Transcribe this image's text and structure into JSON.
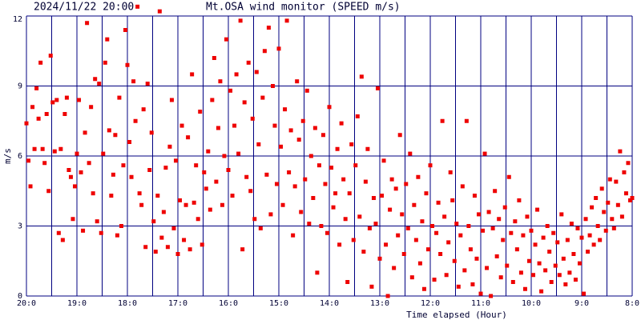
{
  "chart_data": {
    "type": "scatter",
    "title": "2024/11/22 20:00",
    "subtitle": "Mt.OSA wind monitor (SPEED m/s)",
    "x_label": "Time elapsed (Hour)",
    "y_label": "m/s",
    "color": "#ee0000",
    "grid_color": "#000080",
    "grid": true,
    "xlim": [
      0,
      12
    ],
    "ylim": [
      0,
      12
    ],
    "xticks": [
      {
        "value": 0,
        "label": "20:0"
      },
      {
        "value": 1,
        "label": "19:0"
      },
      {
        "value": 2,
        "label": "18:0"
      },
      {
        "value": 3,
        "label": "17:0"
      },
      {
        "value": 4,
        "label": "16:0"
      },
      {
        "value": 5,
        "label": "15:0"
      },
      {
        "value": 6,
        "label": "14:0"
      },
      {
        "value": 7,
        "label": "13:0"
      },
      {
        "value": 8,
        "label": "12:0"
      },
      {
        "value": 9,
        "label": "11:0"
      },
      {
        "value": 10,
        "label": "10:0"
      },
      {
        "value": 11,
        "label": "9:0"
      },
      {
        "value": 12,
        "label": "8:0"
      }
    ],
    "xminor": [
      0.5,
      1.5,
      2.5,
      3.5,
      4.5,
      5.5,
      6.5,
      7.5,
      8.5,
      9.5,
      10.5,
      11.5
    ],
    "yticks": [
      0,
      3,
      6,
      9,
      12
    ],
    "x": [
      0.0,
      0.04,
      0.08,
      0.12,
      0.16,
      0.2,
      0.24,
      0.28,
      0.32,
      0.36,
      0.4,
      0.44,
      0.48,
      0.52,
      0.56,
      0.6,
      0.64,
      0.68,
      0.72,
      0.76,
      0.8,
      0.84,
      0.88,
      0.92,
      0.96,
      1.0,
      1.04,
      1.08,
      1.12,
      1.16,
      1.2,
      1.24,
      1.28,
      1.32,
      1.36,
      1.4,
      1.44,
      1.48,
      1.52,
      1.56,
      1.6,
      1.64,
      1.68,
      1.72,
      1.76,
      1.8,
      1.84,
      1.88,
      1.92,
      1.96,
      2.0,
      2.04,
      2.08,
      2.12,
      2.16,
      2.2,
      2.24,
      2.28,
      2.32,
      2.36,
      2.4,
      2.44,
      2.48,
      2.52,
      2.56,
      2.6,
      2.64,
      2.68,
      2.72,
      2.76,
      2.8,
      2.84,
      2.88,
      2.92,
      2.96,
      3.0,
      3.04,
      3.08,
      3.12,
      3.16,
      3.2,
      3.24,
      3.28,
      3.32,
      3.36,
      3.4,
      3.44,
      3.48,
      3.52,
      3.56,
      3.6,
      3.64,
      3.68,
      3.72,
      3.76,
      3.8,
      3.84,
      3.88,
      3.92,
      3.96,
      4.0,
      4.04,
      4.08,
      4.12,
      4.16,
      4.2,
      4.24,
      4.28,
      4.32,
      4.36,
      4.4,
      4.44,
      4.48,
      4.52,
      4.56,
      4.6,
      4.64,
      4.68,
      4.72,
      4.76,
      4.8,
      4.84,
      4.88,
      4.92,
      4.96,
      5.0,
      5.04,
      5.08,
      5.12,
      5.16,
      5.2,
      5.24,
      5.28,
      5.32,
      5.36,
      5.4,
      5.44,
      5.48,
      5.52,
      5.56,
      5.6,
      5.64,
      5.68,
      5.72,
      5.76,
      5.8,
      5.84,
      5.88,
      5.92,
      5.96,
      6.0,
      6.04,
      6.08,
      6.12,
      6.16,
      6.2,
      6.24,
      6.28,
      6.32,
      6.36,
      6.4,
      6.44,
      6.48,
      6.52,
      6.56,
      6.6,
      6.64,
      6.68,
      6.72,
      6.76,
      6.8,
      6.84,
      6.88,
      6.92,
      6.96,
      7.0,
      7.04,
      7.08,
      7.12,
      7.16,
      7.2,
      7.24,
      7.28,
      7.32,
      7.36,
      7.4,
      7.44,
      7.48,
      7.52,
      7.56,
      7.6,
      7.64,
      7.68,
      7.72,
      7.76,
      7.8,
      7.84,
      7.88,
      7.92,
      7.96,
      8.0,
      8.04,
      8.08,
      8.12,
      8.16,
      8.2,
      8.24,
      8.28,
      8.32,
      8.36,
      8.4,
      8.44,
      8.48,
      8.52,
      8.56,
      8.6,
      8.64,
      8.68,
      8.72,
      8.76,
      8.8,
      8.84,
      8.88,
      8.92,
      8.96,
      9.0,
      9.04,
      9.08,
      9.12,
      9.16,
      9.2,
      9.24,
      9.28,
      9.32,
      9.36,
      9.4,
      9.44,
      9.48,
      9.52,
      9.56,
      9.6,
      9.64,
      9.68,
      9.72,
      9.76,
      9.8,
      9.84,
      9.88,
      9.92,
      9.96,
      10.0,
      10.04,
      10.08,
      10.12,
      10.16,
      10.2,
      10.24,
      10.28,
      10.32,
      10.36,
      10.4,
      10.44,
      10.48,
      10.52,
      10.56,
      10.6,
      10.64,
      10.68,
      10.72,
      10.76,
      10.8,
      10.84,
      10.88,
      10.92,
      10.96,
      11.0,
      11.04,
      11.08,
      11.12,
      11.16,
      11.2,
      11.24,
      11.28,
      11.32,
      11.36,
      11.4,
      11.44,
      11.48,
      11.52,
      11.56,
      11.6,
      11.64,
      11.68,
      11.72,
      11.76,
      11.8,
      11.84,
      11.88,
      11.92,
      11.96,
      12.0
    ],
    "values": [
      7.4,
      5.8,
      4.7,
      8.1,
      6.3,
      8.9,
      7.6,
      10.0,
      6.3,
      5.7,
      7.8,
      4.5,
      10.3,
      8.3,
      6.2,
      8.4,
      2.7,
      6.3,
      2.4,
      7.8,
      8.5,
      5.4,
      5.1,
      3.3,
      4.7,
      6.1,
      8.4,
      5.3,
      2.8,
      7.0,
      11.7,
      5.7,
      8.1,
      4.4,
      9.3,
      3.2,
      9.1,
      2.7,
      6.1,
      10.0,
      11.0,
      7.1,
      4.3,
      5.2,
      6.9,
      2.6,
      8.5,
      3.0,
      5.6,
      11.4,
      9.9,
      6.6,
      5.1,
      9.2,
      7.5,
      12.4,
      4.4,
      3.9,
      8.0,
      2.1,
      9.1,
      5.4,
      7.0,
      3.2,
      1.9,
      4.3,
      12.2,
      2.5,
      3.6,
      5.5,
      2.1,
      6.4,
      8.4,
      2.9,
      5.8,
      1.8,
      4.1,
      7.3,
      2.4,
      3.9,
      6.8,
      2.0,
      9.5,
      4.0,
      5.6,
      3.3,
      7.9,
      2.2,
      5.3,
      4.6,
      6.2,
      3.7,
      8.4,
      10.2,
      4.9,
      7.2,
      9.2,
      3.9,
      6.0,
      11.0,
      5.4,
      8.8,
      4.3,
      7.3,
      9.5,
      6.1,
      11.8,
      2.0,
      8.3,
      5.1,
      10.0,
      4.5,
      7.6,
      3.3,
      9.6,
      6.5,
      2.9,
      8.5,
      10.5,
      5.2,
      11.5,
      3.5,
      9.0,
      7.3,
      4.8,
      10.6,
      6.4,
      3.9,
      8.0,
      11.8,
      5.3,
      7.1,
      2.6,
      4.7,
      9.2,
      6.7,
      3.6,
      7.5,
      5.0,
      8.8,
      3.1,
      6.0,
      4.2,
      7.2,
      1.0,
      5.6,
      3.0,
      6.9,
      4.8,
      2.7,
      8.1,
      5.5,
      3.8,
      4.4,
      6.3,
      2.2,
      7.4,
      5.0,
      3.3,
      0.6,
      4.4,
      6.5,
      2.4,
      5.6,
      7.7,
      3.4,
      9.4,
      1.9,
      4.9,
      6.3,
      2.9,
      0.4,
      4.2,
      3.1,
      8.9,
      1.6,
      4.3,
      5.8,
      2.2,
      0.0,
      3.7,
      5.0,
      1.2,
      4.6,
      2.6,
      6.9,
      3.5,
      1.8,
      4.8,
      2.9,
      6.1,
      0.8,
      3.9,
      2.4,
      5.1,
      1.4,
      3.2,
      0.3,
      4.4,
      2.0,
      5.6,
      3.0,
      0.7,
      2.7,
      4.0,
      1.8,
      7.5,
      3.4,
      0.9,
      2.3,
      5.3,
      4.1,
      1.5,
      3.1,
      0.4,
      2.6,
      4.7,
      1.1,
      7.5,
      3.0,
      2.0,
      0.5,
      4.3,
      1.6,
      3.5,
      0.1,
      2.8,
      6.1,
      1.2,
      3.6,
      0.0,
      2.9,
      4.5,
      1.7,
      3.3,
      0.8,
      2.4,
      3.8,
      1.3,
      5.1,
      2.7,
      0.6,
      3.2,
      2.0,
      4.1,
      1.0,
      2.6,
      0.3,
      3.4,
      1.5,
      2.8,
      0.9,
      2.2,
      3.7,
      1.4,
      0.2,
      2.5,
      1.1,
      3.0,
      1.9,
      0.6,
      2.7,
      1.3,
      2.3,
      0.9,
      3.5,
      1.6,
      0.5,
      2.4,
      1.0,
      3.1,
      1.8,
      0.7,
      2.9,
      1.4,
      2.5,
      0.1,
      3.3,
      1.9,
      2.6,
      3.8,
      2.2,
      4.2,
      3.0,
      2.4,
      4.6,
      3.6,
      2.8,
      4.0,
      5.0,
      3.3,
      2.9,
      4.9,
      3.9,
      6.2,
      3.4,
      5.3,
      4.4,
      5.7,
      4.1,
      4.2
    ]
  }
}
